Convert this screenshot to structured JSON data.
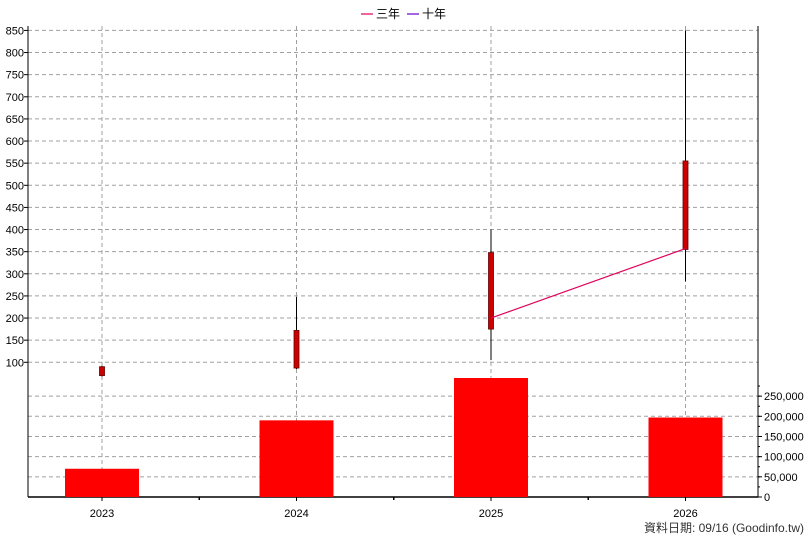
{
  "chart_data": {
    "type": "candlestick+bar",
    "legend": [
      {
        "label": "三年",
        "color": "#e0005a"
      },
      {
        "label": "十年",
        "color": "#6600cc"
      }
    ],
    "categories": [
      "2023",
      "2024",
      "2025",
      "2026"
    ],
    "price_axis": {
      "ticks": [
        "100",
        "150",
        "200",
        "250",
        "300",
        "350",
        "400",
        "450",
        "500",
        "550",
        "600",
        "650",
        "700",
        "750",
        "800",
        "850"
      ],
      "range": [
        60,
        860
      ]
    },
    "volume_axis": {
      "ticks": [
        "0",
        "50,000",
        "100,000",
        "150,000",
        "200,000",
        "250,000"
      ],
      "range": [
        0,
        290000
      ]
    },
    "candles": [
      {
        "category": "2023",
        "open": 90,
        "close": 70,
        "high": 92,
        "low": 68
      },
      {
        "category": "2024",
        "open": 87,
        "close": 172,
        "high": 248,
        "low": 85
      },
      {
        "category": "2025",
        "open": 175,
        "close": 348,
        "high": 400,
        "low": 105
      },
      {
        "category": "2026",
        "open": 355,
        "close": 555,
        "high": 850,
        "low": 283
      }
    ],
    "volume": [
      70000,
      190000,
      295000,
      197000
    ],
    "series": [
      {
        "name": "三年",
        "color": "#e0005a",
        "points": [
          {
            "category": "2025",
            "value": 200
          },
          {
            "category": "2026",
            "value": 357
          }
        ]
      }
    ],
    "colors": {
      "candle": "#cc0000",
      "candle_border": "#660000",
      "volume": "#ff0000",
      "grid": "#a0a0a0"
    }
  },
  "footer": "資料日期: 09/16  (Goodinfo.tw)"
}
